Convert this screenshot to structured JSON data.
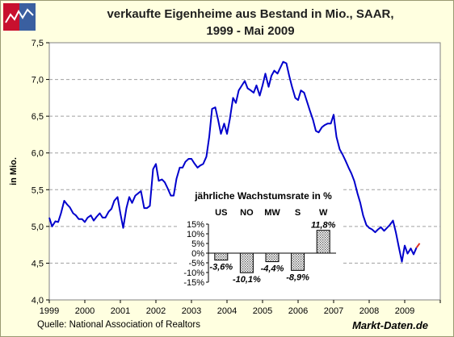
{
  "title_line1": "verkaufte Eigenheime aus Bestand in Mio., SAAR,",
  "title_line2": "1999 - Mai 2009",
  "source": "Quelle: National Association of Realtors",
  "brand": "Markt-Daten.de",
  "chart_data": [
    {
      "type": "line",
      "title": "verkaufte Eigenheime aus Bestand in Mio., SAAR, 1999 - Mai 2009",
      "xlabel": "",
      "ylabel": "in Mio.",
      "xlim": [
        1999,
        2010
      ],
      "ylim": [
        4.0,
        7.5
      ],
      "x_ticks": [
        "1999",
        "2000",
        "2001",
        "2002",
        "2003",
        "2004",
        "2005",
        "2006",
        "2007",
        "2008",
        "2009"
      ],
      "y_ticks": [
        "4,0",
        "4,5",
        "5,0",
        "5,5",
        "6,0",
        "6,5",
        "7,0",
        "7,5"
      ],
      "grid": "horizontal dashed",
      "line_color": "#0000cc",
      "highlight_color": "#e03020",
      "series": [
        {
          "x": [
            1999.0,
            1999.08,
            1999.17,
            1999.25,
            1999.33,
            1999.42,
            1999.5,
            1999.58,
            1999.67,
            1999.75,
            1999.83,
            1999.92,
            2000.0,
            2000.08,
            2000.17,
            2000.25,
            2000.33,
            2000.42,
            2000.5,
            2000.58,
            2000.67,
            2000.75,
            2000.83,
            2000.92,
            2001.0,
            2001.08,
            2001.17,
            2001.25,
            2001.33,
            2001.42,
            2001.5,
            2001.58,
            2001.67,
            2001.75,
            2001.83,
            2001.92,
            2002.0,
            2002.08,
            2002.17,
            2002.25,
            2002.33,
            2002.42,
            2002.5,
            2002.58,
            2002.67,
            2002.75,
            2002.83,
            2002.92,
            2003.0,
            2003.08,
            2003.17,
            2003.25,
            2003.33,
            2003.42,
            2003.5,
            2003.58,
            2003.67,
            2003.75,
            2003.83,
            2003.92,
            2004.0,
            2004.08,
            2004.17,
            2004.25,
            2004.33,
            2004.42,
            2004.5,
            2004.58,
            2004.67,
            2004.75,
            2004.83,
            2004.92,
            2005.0,
            2005.08,
            2005.17,
            2005.25,
            2005.33,
            2005.42,
            2005.5,
            2005.58,
            2005.67,
            2005.75,
            2005.83,
            2005.92,
            2006.0,
            2006.08,
            2006.17,
            2006.25,
            2006.33,
            2006.42,
            2006.5,
            2006.58,
            2006.67,
            2006.75,
            2006.83,
            2006.92,
            2007.0,
            2007.08,
            2007.17,
            2007.25,
            2007.33,
            2007.42,
            2007.5,
            2007.58,
            2007.67,
            2007.75,
            2007.83,
            2007.92,
            2008.0,
            2008.08,
            2008.17,
            2008.25,
            2008.33,
            2008.42,
            2008.5,
            2008.58,
            2008.67,
            2008.75,
            2008.83,
            2008.92,
            2009.0,
            2009.08,
            2009.17,
            2009.25,
            2009.33
          ],
          "values": [
            5.12,
            5.0,
            5.07,
            5.06,
            5.18,
            5.35,
            5.3,
            5.26,
            5.18,
            5.15,
            5.1,
            5.1,
            5.06,
            5.12,
            5.15,
            5.08,
            5.13,
            5.18,
            5.12,
            5.12,
            5.2,
            5.24,
            5.35,
            5.4,
            5.18,
            4.98,
            5.25,
            5.4,
            5.32,
            5.42,
            5.45,
            5.48,
            5.25,
            5.25,
            5.28,
            5.78,
            5.85,
            5.62,
            5.64,
            5.6,
            5.52,
            5.42,
            5.42,
            5.65,
            5.8,
            5.8,
            5.88,
            5.92,
            5.92,
            5.86,
            5.8,
            5.83,
            5.85,
            5.95,
            6.22,
            6.6,
            6.62,
            6.45,
            6.26,
            6.4,
            6.26,
            6.46,
            6.75,
            6.68,
            6.85,
            6.92,
            6.98,
            6.88,
            6.85,
            6.82,
            6.92,
            6.78,
            6.92,
            7.08,
            6.9,
            7.05,
            7.12,
            7.08,
            7.16,
            7.24,
            7.22,
            7.05,
            6.9,
            6.75,
            6.72,
            6.85,
            6.82,
            6.7,
            6.58,
            6.45,
            6.3,
            6.28,
            6.35,
            6.38,
            6.4,
            6.4,
            6.52,
            6.22,
            6.05,
            5.98,
            5.9,
            5.8,
            5.72,
            5.62,
            5.45,
            5.32,
            5.15,
            5.02,
            4.98,
            4.96,
            4.92,
            4.96,
            4.99,
            4.94,
            4.98,
            5.02,
            5.08,
            4.92,
            4.73,
            4.52,
            4.74,
            4.63,
            4.7,
            4.62,
            4.71
          ]
        },
        {
          "x": [
            2009.33,
            2009.42
          ],
          "values": [
            4.71,
            4.77
          ]
        }
      ]
    },
    {
      "type": "bar",
      "title": "jährliche Wachstumsrate in %",
      "categories": [
        "US",
        "NO",
        "MW",
        "S",
        "W"
      ],
      "values": [
        -3.6,
        -10.1,
        -4.4,
        -8.9,
        11.8
      ],
      "value_labels": [
        "-3,6%",
        "-10,1%",
        "-4,4%",
        "-8,9%",
        "11,8%"
      ],
      "ylim": [
        -15,
        15
      ],
      "y_ticks": [
        "15%",
        "10%",
        "5%",
        "0%",
        "-5%",
        "-10%",
        "-15%"
      ]
    }
  ]
}
